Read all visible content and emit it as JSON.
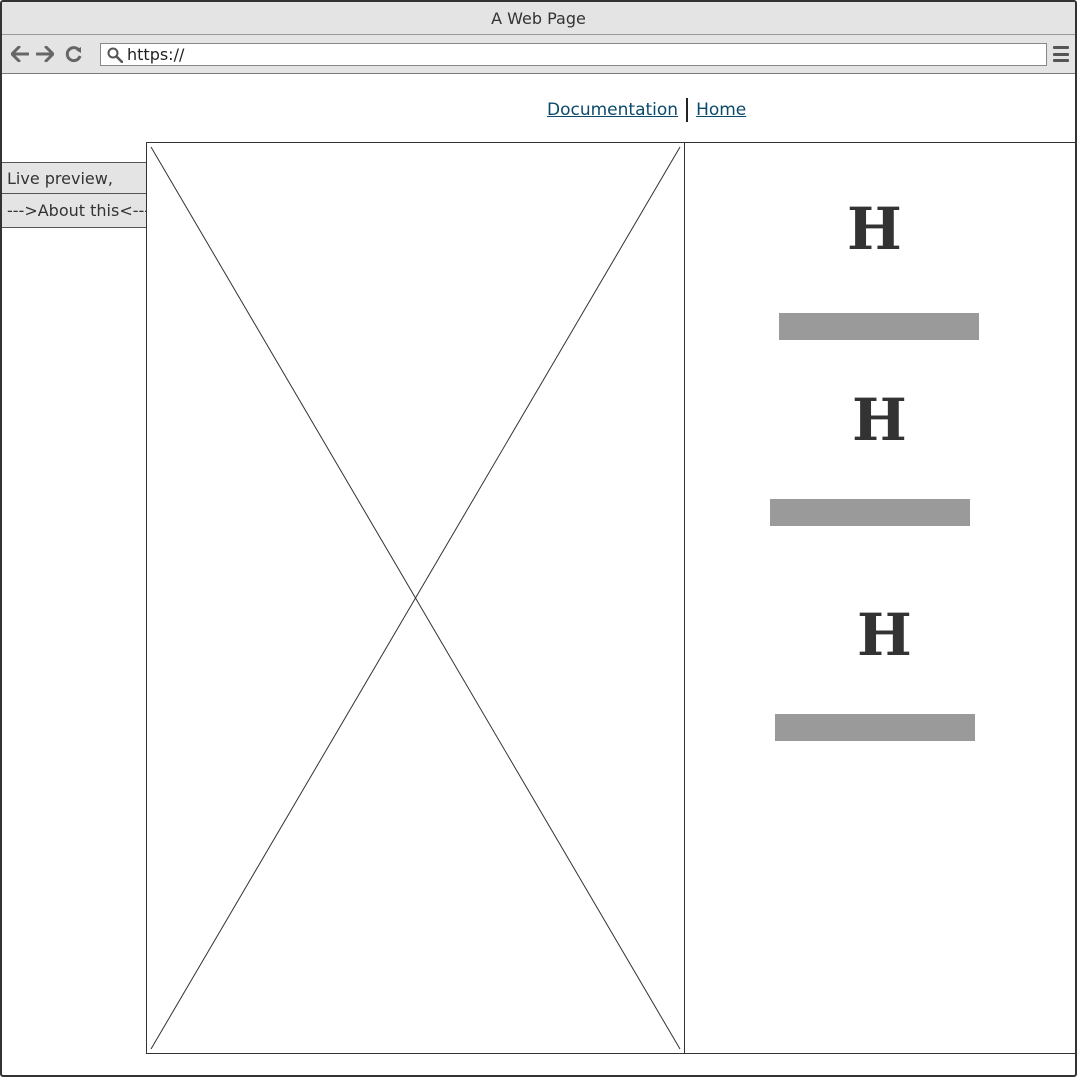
{
  "window": {
    "title": "A Web Page"
  },
  "toolbar": {
    "back_icon": "arrow-left-icon",
    "forward_icon": "arrow-right-icon",
    "reload_icon": "reload-icon",
    "url": "https://",
    "menu_icon": "hamburger-menu-icon"
  },
  "topnav": {
    "links": [
      "Documentation",
      "Home"
    ]
  },
  "sidebar": {
    "tabs": [
      "Live preview,",
      "--->About this<---"
    ]
  },
  "content": {
    "image": "image-placeholder",
    "headings": [
      "H",
      "H",
      "H"
    ]
  },
  "colors": {
    "chrome": "#e4e4e4",
    "link": "#0b4a6b",
    "text_bar": "#9a9a9a",
    "ink": "#333333"
  }
}
